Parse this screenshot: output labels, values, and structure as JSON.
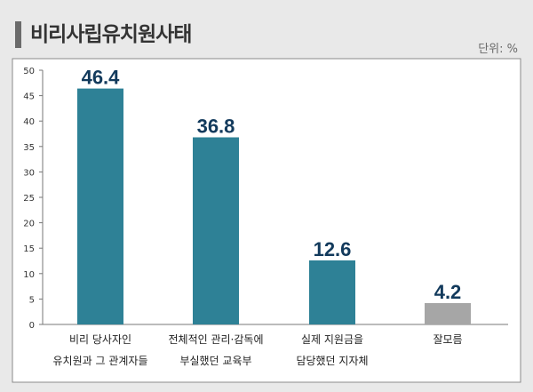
{
  "title": "비리사립유치원사태",
  "unit_label": "단위: %",
  "chart_data": {
    "type": "bar",
    "title": "비리사립유치원사태",
    "xlabel": "",
    "ylabel": "",
    "ylim": [
      0,
      50
    ],
    "yticks": [
      0,
      5,
      10,
      15,
      20,
      25,
      30,
      35,
      40,
      45,
      50
    ],
    "grid": false,
    "categories": [
      [
        "비리 당사자인",
        "유치원과 그 관계자들"
      ],
      [
        "전체적인 관리·감독에",
        "부실했던 교육부"
      ],
      [
        "실제 지원금을",
        "담당했던 지자체"
      ],
      [
        "잘모름"
      ]
    ],
    "values": [
      46.4,
      36.8,
      12.6,
      4.2
    ],
    "value_labels": [
      "46.4",
      "36.8",
      "12.6",
      "4.2"
    ],
    "colors": [
      "#2e8196",
      "#2e8196",
      "#2e8196",
      "#a6a6a6"
    ]
  }
}
